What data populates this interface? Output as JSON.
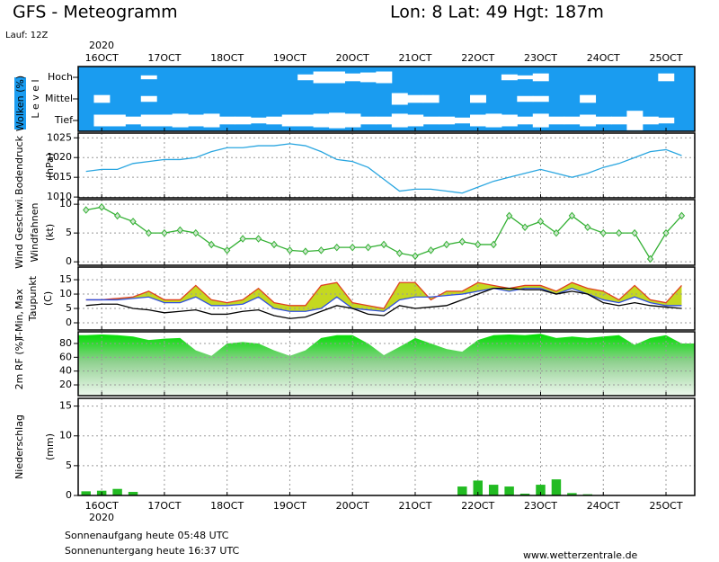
{
  "header": {
    "title": "GFS - Meteogramm",
    "location": "Lon: 8 Lat: 49 Hgt: 187m",
    "run": "Lauf: 12Z"
  },
  "footer": {
    "sunrise": "Sonnenaufgang heute 05:48 UTC",
    "sunset": "Sonnenuntergang heute 16:37 UTC",
    "source": "www.wetterzentrale.de"
  },
  "chart_data": {
    "type": "meteogram",
    "year": "2020",
    "x": [
      -6,
      0,
      6,
      12,
      18,
      24,
      30,
      36,
      42,
      48,
      54,
      60,
      66,
      72,
      78,
      84,
      90,
      96,
      102,
      108,
      114,
      120,
      126,
      132,
      138,
      144,
      150,
      156,
      162,
      168,
      174,
      180,
      186,
      192,
      198,
      204,
      210,
      216,
      222
    ],
    "xlim": [
      -9,
      227
    ],
    "xticks": [
      {
        "value": 0,
        "label": "16OCT"
      },
      {
        "value": 24,
        "label": "17OCT"
      },
      {
        "value": 48,
        "label": "18OCT"
      },
      {
        "value": 72,
        "label": "19OCT"
      },
      {
        "value": 96,
        "label": "20OCT"
      },
      {
        "value": 120,
        "label": "21OCT"
      },
      {
        "value": 144,
        "label": "22OCT"
      },
      {
        "value": 168,
        "label": "23OCT"
      },
      {
        "value": 192,
        "label": "24OCT"
      },
      {
        "value": 216,
        "label": "25OCT"
      }
    ],
    "grid": true,
    "panels": [
      {
        "kind": "cloud",
        "labels": [
          "Wolken (%)",
          "L e v e l"
        ],
        "categories": [
          "Hoch",
          "Mittel",
          "Tief"
        ],
        "color": "#1a9cf0",
        "series": [
          {
            "values": [
              100,
              100,
              100,
              100,
              80,
              100,
              100,
              100,
              100,
              100,
              100,
              100,
              100,
              100,
              70,
              40,
              40,
              60,
              50,
              40,
              100,
              100,
              100,
              100,
              100,
              100,
              100,
              70,
              80,
              60,
              100,
              100,
              100,
              100,
              100,
              100,
              100,
              60,
              100
            ]
          },
          {
            "values": [
              100,
              60,
              100,
              100,
              70,
              100,
              100,
              100,
              100,
              100,
              100,
              100,
              100,
              100,
              100,
              100,
              100,
              100,
              100,
              100,
              40,
              60,
              60,
              100,
              100,
              60,
              100,
              100,
              70,
              70,
              100,
              100,
              60,
              100,
              100,
              100,
              100,
              100,
              100
            ]
          },
          {
            "values": [
              100,
              40,
              40,
              60,
              40,
              40,
              30,
              40,
              30,
              60,
              60,
              70,
              60,
              40,
              40,
              30,
              20,
              30,
              60,
              60,
              30,
              40,
              60,
              60,
              70,
              40,
              30,
              40,
              60,
              30,
              60,
              60,
              40,
              60,
              60,
              0,
              60,
              70,
              100
            ]
          }
        ]
      },
      {
        "kind": "line",
        "labels": [
          "Bodendruck",
          "(hPa)"
        ],
        "ylim": [
          1009.8,
          1026.2
        ],
        "yticks": [
          1010,
          1015,
          1020,
          1025
        ],
        "series": [
          {
            "color": "#2aa6e0",
            "values": [
              1016.5,
              1017,
              1017,
              1018.5,
              1019,
              1019.5,
              1019.5,
              1020,
              1021.5,
              1022.5,
              1022.5,
              1023,
              1023,
              1023.5,
              1023,
              1021.5,
              1019.5,
              1019,
              1017.5,
              1014.5,
              1011.5,
              1012,
              1012,
              1011.5,
              1011,
              1012.5,
              1014,
              1015,
              1016,
              1017,
              1016,
              1015,
              1016,
              1017.5,
              1018.5,
              1020,
              1021.5,
              1022,
              1020.5
            ]
          }
        ]
      },
      {
        "kind": "line",
        "labels": [
          "Wind Geschwi.",
          "Windfahnen",
          "(kt)"
        ],
        "label_colors": [
          "#22aa22",
          "#000000",
          "#000000"
        ],
        "ylim": [
          -0.6,
          10.8
        ],
        "yticks": [
          0,
          5,
          10
        ],
        "marker": "diamond",
        "series": [
          {
            "color": "#33b033",
            "values": [
              9,
              9.5,
              8,
              7,
              5,
              5,
              5.5,
              5,
              3,
              2,
              4,
              4,
              3,
              2,
              1.8,
              2,
              2.5,
              2.5,
              2.5,
              3,
              1.5,
              1,
              2,
              3,
              3.5,
              3,
              3,
              8,
              6,
              7,
              5,
              8,
              6,
              5,
              5,
              5,
              0.5,
              5,
              8
            ]
          }
        ]
      },
      {
        "kind": "temp",
        "labels": [
          "T-Min,",
          "Max",
          "Taupunkt",
          "(C)"
        ],
        "label_colors": [
          "#2040e0",
          "#e02020",
          "#000000",
          "#000000"
        ],
        "ylim": [
          -2.5,
          19.4
        ],
        "yticks": [
          0,
          5,
          10,
          15
        ],
        "fill": "#c4d820",
        "series": [
          {
            "color": "#e04020",
            "values": [
              8,
              8,
              8.5,
              9,
              11,
              8,
              8,
              13,
              8,
              7,
              8,
              12,
              7,
              6,
              6,
              13,
              14,
              7,
              6,
              5,
              14,
              14,
              8,
              11,
              11,
              14,
              13,
              12,
              13,
              13,
              11,
              14,
              12,
              11,
              8,
              13,
              8,
              7,
              13
            ]
          },
          {
            "color": "#3050e0",
            "values": [
              8,
              8,
              8,
              8.5,
              9,
              7,
              7,
              9,
              6,
              6,
              6.5,
              9,
              5,
              4,
              4,
              5,
              9,
              5,
              4.5,
              4,
              8,
              9,
              9,
              9.5,
              10,
              11,
              12,
              11,
              12,
              12,
              10,
              12,
              10,
              8,
              7,
              9,
              7,
              6,
              6
            ]
          },
          {
            "color": "#000000",
            "values": [
              6,
              6.5,
              6.5,
              5,
              4.5,
              3.5,
              4,
              4.5,
              3,
              3,
              4,
              4.5,
              2.5,
              1.5,
              2,
              4,
              6,
              5,
              3,
              2.5,
              6,
              5,
              5.5,
              6,
              8,
              10,
              12,
              12,
              11.5,
              11.5,
              10,
              11,
              10,
              7,
              6,
              7,
              6,
              5.5,
              5
            ]
          }
        ]
      },
      {
        "kind": "area",
        "labels": [
          "2m RF (%)"
        ],
        "label_colors": [
          "#22aa22"
        ],
        "ylim": [
          4.4,
          96.9
        ],
        "yticks": [
          20,
          40,
          60,
          80
        ],
        "series": [
          {
            "color": "#00dd00",
            "values": [
              92,
              93,
              92,
              90,
              85,
              87,
              88,
              70,
              62,
              80,
              82,
              80,
              70,
              62,
              70,
              88,
              92,
              92,
              80,
              63,
              75,
              88,
              80,
              72,
              68,
              85,
              92,
              93,
              92,
              94,
              88,
              90,
              88,
              90,
              92,
              78,
              88,
              92,
              80
            ]
          }
        ]
      },
      {
        "kind": "bar",
        "labels": [
          "Niederschlag",
          "(mm)"
        ],
        "ylim": [
          0,
          16.3
        ],
        "yticks": [
          0,
          5,
          10,
          15
        ],
        "series": [
          {
            "color": "#22bb22",
            "values": [
              0.7,
              0.8,
              1.1,
              0.6,
              0,
              0,
              0,
              0,
              0,
              0,
              0,
              0,
              0,
              0,
              0,
              0,
              0,
              0,
              0,
              0,
              0,
              0,
              0,
              0,
              1.5,
              2.5,
              1.8,
              1.5,
              0.3,
              1.8,
              2.7,
              0.4,
              0.2,
              0,
              0,
              0,
              0,
              0,
              0
            ]
          }
        ]
      }
    ]
  }
}
